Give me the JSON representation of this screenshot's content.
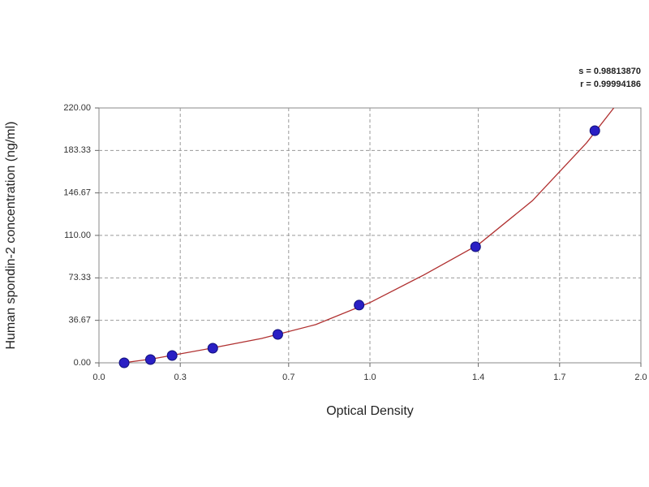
{
  "chart_data": {
    "type": "scatter",
    "xlabel": "Optical Density",
    "ylabel": "Human spondin-2 concentration (ng/ml)",
    "annotations": [
      "s = 0.98813870",
      "r = 0.99994186"
    ],
    "x": [
      0.093,
      0.19,
      0.27,
      0.42,
      0.66,
      0.96,
      1.39,
      1.83
    ],
    "values": [
      0,
      2.8,
      6.3,
      12.6,
      24.5,
      49.8,
      100.2,
      200.4
    ],
    "color": "#2a1fc4",
    "curve": {
      "color": "#b03030",
      "x": [
        0.09,
        0.2,
        0.4,
        0.6,
        0.8,
        1.0,
        1.2,
        1.4,
        1.6,
        1.8,
        1.9
      ],
      "values": [
        0,
        3.5,
        12,
        21,
        33,
        52,
        76,
        102,
        140,
        190,
        220
      ]
    },
    "xlim": [
      0,
      2
    ],
    "xticks": [
      {
        "value": 0,
        "label": "0.0"
      },
      0.3,
      0.7,
      {
        "value": 1,
        "label": "1.0"
      },
      1.4,
      1.7,
      {
        "value": 2,
        "label": "2.0"
      }
    ],
    "ylim": [
      0,
      220
    ],
    "yticks": [
      {
        "value": 0,
        "label": "0.00"
      },
      36.67,
      73.33,
      {
        "value": 110,
        "label": "110.00"
      },
      146.67,
      183.33,
      {
        "value": 220,
        "label": "220.00"
      }
    ],
    "grid": true
  }
}
